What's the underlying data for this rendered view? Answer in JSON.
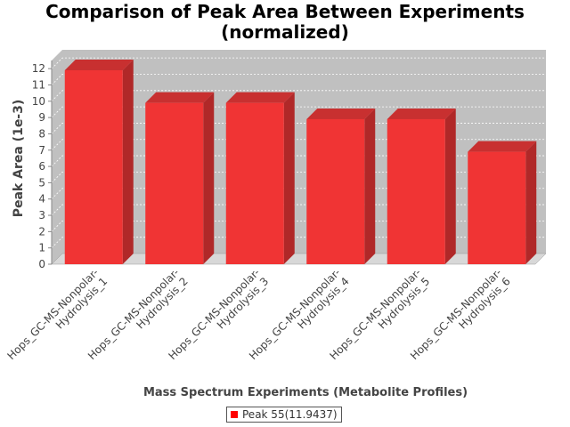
{
  "chart_data": {
    "type": "bar",
    "title_lines": [
      "Comparison of Peak Area Between Experiments",
      "(normalized)"
    ],
    "xlabel": "Mass Spectrum Experiments (Metabolite Profiles)",
    "ylabel": "Peak Area (1e-3)",
    "categories": [
      [
        "Hops_GC-MS-Nonpolar-",
        "Hydrolysis_1"
      ],
      [
        "Hops_GC-MS-Nonpolar-",
        "Hydrolysis_2"
      ],
      [
        "Hops_GC-MS-Nonpolar-",
        "Hydrolysis_3"
      ],
      [
        "Hops_GC-MS-Nonpolar-",
        "Hydrolysis_4"
      ],
      [
        "Hops_GC-MS-Nonpolar-",
        "Hydrolysis_5"
      ],
      [
        "Hops_GC-MS-Nonpolar-",
        "Hydrolysis_6"
      ]
    ],
    "series": [
      {
        "name": "Peak 55(11.9437)",
        "values": [
          11.9,
          9.9,
          9.9,
          8.9,
          8.9,
          6.9
        ]
      }
    ],
    "ylim": [
      0,
      12.5
    ],
    "yticks": [
      0,
      1,
      2,
      3,
      4,
      5,
      6,
      7,
      8,
      9,
      10,
      11,
      12
    ],
    "grid": true,
    "legend_position": "bottom",
    "colors": {
      "bar_front": "#f03434",
      "bar_side": "#b02828",
      "bar_top": "#c83030",
      "plot_bg": "#c0c0c0",
      "floor": "#d8d8d8"
    }
  }
}
